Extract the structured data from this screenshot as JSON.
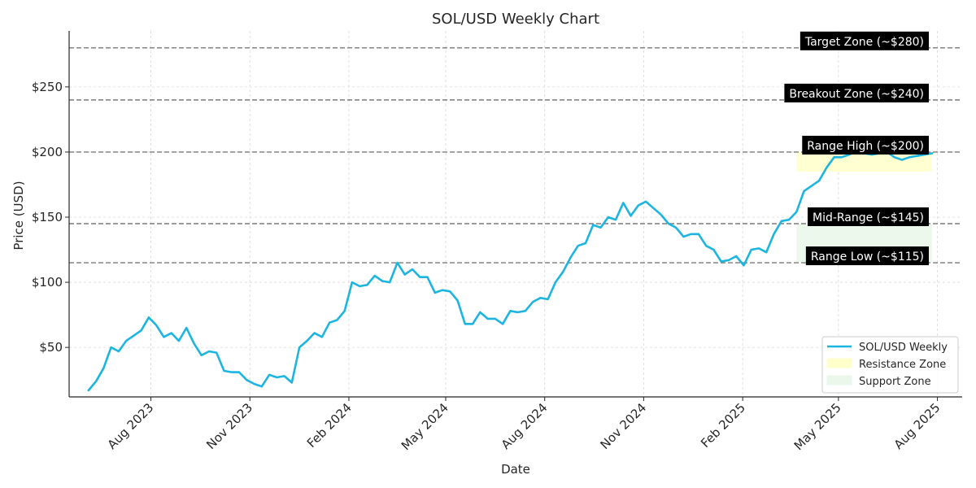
{
  "chart_data": {
    "type": "line",
    "title": "SOL/USD Weekly Chart",
    "xlabel": "Date",
    "ylabel": "Price (USD)",
    "x_ticks": [
      {
        "date": "2023-08-01",
        "label": "Aug 2023"
      },
      {
        "date": "2023-11-01",
        "label": "Nov 2023"
      },
      {
        "date": "2024-02-01",
        "label": "Feb 2024"
      },
      {
        "date": "2024-05-01",
        "label": "May 2024"
      },
      {
        "date": "2024-08-01",
        "label": "Aug 2024"
      },
      {
        "date": "2024-11-01",
        "label": "Nov 2024"
      },
      {
        "date": "2025-02-01",
        "label": "Feb 2025"
      },
      {
        "date": "2025-05-01",
        "label": "May 2025"
      },
      {
        "date": "2025-08-01",
        "label": "Aug 2025"
      }
    ],
    "y_ticks": [
      {
        "value": 50,
        "label": "$50"
      },
      {
        "value": 100,
        "label": "$100"
      },
      {
        "value": 150,
        "label": "$150"
      },
      {
        "value": 200,
        "label": "$200"
      },
      {
        "value": 250,
        "label": "$250"
      }
    ],
    "xlim": [
      "2023-05-17",
      "2025-08-24"
    ],
    "ylim": [
      12,
      293
    ],
    "grid": true,
    "legend_position": "bottom-right",
    "series": [
      {
        "name": "SOL/USD Weekly",
        "color": "#1cb5e0",
        "x": [
          "2023-06-04",
          "2023-06-11",
          "2023-06-18",
          "2023-06-25",
          "2023-07-02",
          "2023-07-09",
          "2023-07-16",
          "2023-07-23",
          "2023-07-30",
          "2023-08-06",
          "2023-08-13",
          "2023-08-20",
          "2023-08-27",
          "2023-09-03",
          "2023-09-10",
          "2023-09-17",
          "2023-09-24",
          "2023-10-01",
          "2023-10-08",
          "2023-10-15",
          "2023-10-22",
          "2023-10-29",
          "2023-11-05",
          "2023-11-12",
          "2023-11-19",
          "2023-11-26",
          "2023-12-03",
          "2023-12-10",
          "2023-12-17",
          "2023-12-24",
          "2023-12-31",
          "2024-01-07",
          "2024-01-14",
          "2024-01-21",
          "2024-01-28",
          "2024-02-04",
          "2024-02-11",
          "2024-02-18",
          "2024-02-25",
          "2024-03-03",
          "2024-03-10",
          "2024-03-17",
          "2024-03-24",
          "2024-03-31",
          "2024-04-07",
          "2024-04-14",
          "2024-04-21",
          "2024-04-28",
          "2024-05-05",
          "2024-05-12",
          "2024-05-19",
          "2024-05-26",
          "2024-06-02",
          "2024-06-09",
          "2024-06-16",
          "2024-06-23",
          "2024-06-30",
          "2024-07-07",
          "2024-07-14",
          "2024-07-21",
          "2024-07-28",
          "2024-08-04",
          "2024-08-11",
          "2024-08-18",
          "2024-08-25",
          "2024-09-01",
          "2024-09-08",
          "2024-09-15",
          "2024-09-22",
          "2024-09-29",
          "2024-10-06",
          "2024-10-13",
          "2024-10-20",
          "2024-10-27",
          "2024-11-03",
          "2024-11-10",
          "2024-11-17",
          "2024-11-24",
          "2024-12-01",
          "2024-12-08",
          "2024-12-15",
          "2024-12-22",
          "2024-12-29",
          "2025-01-05",
          "2025-01-12",
          "2025-01-19",
          "2025-01-26",
          "2025-02-02",
          "2025-02-09",
          "2025-02-16",
          "2025-02-23",
          "2025-03-02",
          "2025-03-09",
          "2025-03-16",
          "2025-03-23",
          "2025-03-30",
          "2025-04-06",
          "2025-04-13",
          "2025-04-20",
          "2025-04-27",
          "2025-05-04",
          "2025-05-11",
          "2025-05-18",
          "2025-05-25",
          "2025-06-01",
          "2025-06-08",
          "2025-06-15",
          "2025-06-22",
          "2025-06-29",
          "2025-07-06",
          "2025-07-13",
          "2025-07-20",
          "2025-07-27"
        ],
        "y": [
          17,
          24,
          34,
          50,
          47,
          55,
          59,
          63,
          73,
          67,
          58,
          61,
          55,
          65,
          53,
          44,
          47,
          46,
          32,
          31,
          31,
          25,
          22,
          20,
          29,
          27,
          28,
          23,
          50,
          55,
          61,
          58,
          69,
          71,
          78,
          100,
          97,
          98,
          105,
          101,
          100,
          115,
          106,
          110,
          104,
          104,
          92,
          94,
          93,
          86,
          68,
          68,
          77,
          72,
          72,
          68,
          78,
          77,
          78,
          85,
          88,
          87,
          100,
          108,
          119,
          128,
          130,
          144,
          142,
          150,
          148,
          161,
          151,
          159,
          162,
          157,
          152,
          145,
          142,
          135,
          137,
          137,
          128,
          125,
          116,
          117,
          120,
          113,
          125,
          126,
          123,
          137,
          147,
          148,
          154,
          170,
          174,
          178,
          188,
          196,
          196,
          198,
          201,
          199,
          198,
          199,
          200,
          196,
          194,
          196,
          197,
          198,
          199
        ]
      }
    ],
    "levels": [
      {
        "value": 280,
        "label": "Target Zone (~$280)"
      },
      {
        "value": 240,
        "label": "Breakout Zone (~$240)"
      },
      {
        "value": 200,
        "label": "Range High (~$200)"
      },
      {
        "value": 145,
        "label": "Mid-Range (~$145)"
      },
      {
        "value": 115,
        "label": "Range Low (~$115)"
      }
    ],
    "zones": [
      {
        "name": "Resistance Zone",
        "start": "2025-03-23",
        "end": "2025-07-27",
        "low": 185,
        "high": 200,
        "color": "#ffffcc"
      },
      {
        "name": "Support Zone",
        "start": "2025-03-23",
        "end": "2025-07-27",
        "low": 115,
        "high": 145,
        "color": "#ebf7eb"
      }
    ]
  }
}
